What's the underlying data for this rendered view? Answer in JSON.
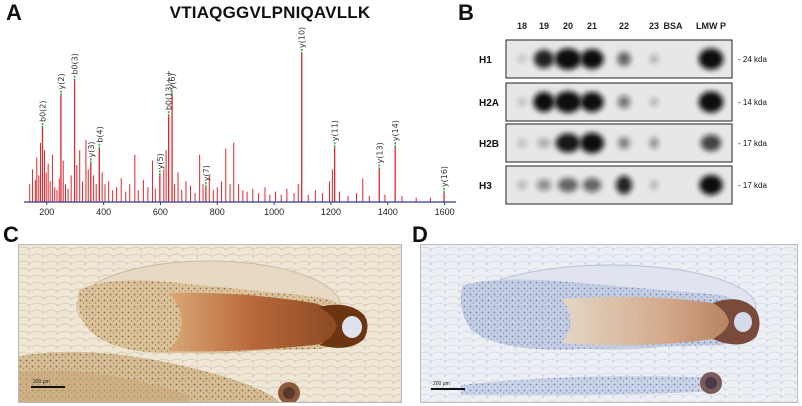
{
  "panels": {
    "a": "A",
    "b": "B",
    "c": "C",
    "d": "D"
  },
  "peptide": "VTIAQGGVLPNIQAVLLK",
  "chart_data": {
    "type": "bar",
    "title": "VTIAQGGVLPNIQAVLLK",
    "xlim": [
      120,
      1640
    ],
    "xticks": [
      200,
      400,
      600,
      800,
      1000,
      1200,
      1400,
      1600
    ],
    "annotated_peaks": [
      {
        "label": "b0(2)",
        "x": 185,
        "y": 50
      },
      {
        "label": "y(2)",
        "x": 250,
        "y": 72
      },
      {
        "label": "b0(3)",
        "x": 298,
        "y": 82
      },
      {
        "label": "y(3)",
        "x": 355,
        "y": 26
      },
      {
        "label": "b(4)",
        "x": 385,
        "y": 36
      },
      {
        "label": "y(5)",
        "x": 598,
        "y": 18
      },
      {
        "label": "b0(13)++",
        "x": 629,
        "y": 58
      },
      {
        "label": "y(6)",
        "x": 641,
        "y": 72
      },
      {
        "label": "y(7)",
        "x": 760,
        "y": 10
      },
      {
        "label": "y(10)",
        "x": 1097,
        "y": 100
      },
      {
        "label": "y(11)",
        "x": 1213,
        "y": 37
      },
      {
        "label": "y(13)",
        "x": 1370,
        "y": 22
      },
      {
        "label": "y(14)",
        "x": 1426,
        "y": 37
      },
      {
        "label": "y(16)",
        "x": 1598,
        "y": 6
      }
    ],
    "other_peaks": [
      {
        "x": 140,
        "y": 12
      },
      {
        "x": 150,
        "y": 22
      },
      {
        "x": 160,
        "y": 15
      },
      {
        "x": 165,
        "y": 30
      },
      {
        "x": 172,
        "y": 18
      },
      {
        "x": 178,
        "y": 40
      },
      {
        "x": 192,
        "y": 35
      },
      {
        "x": 198,
        "y": 20
      },
      {
        "x": 205,
        "y": 26
      },
      {
        "x": 212,
        "y": 14
      },
      {
        "x": 220,
        "y": 32
      },
      {
        "x": 228,
        "y": 10
      },
      {
        "x": 236,
        "y": 8
      },
      {
        "x": 244,
        "y": 16
      },
      {
        "x": 258,
        "y": 28
      },
      {
        "x": 266,
        "y": 12
      },
      {
        "x": 275,
        "y": 9
      },
      {
        "x": 286,
        "y": 18
      },
      {
        "x": 306,
        "y": 25
      },
      {
        "x": 316,
        "y": 35
      },
      {
        "x": 326,
        "y": 14
      },
      {
        "x": 338,
        "y": 42
      },
      {
        "x": 346,
        "y": 22
      },
      {
        "x": 365,
        "y": 18
      },
      {
        "x": 374,
        "y": 12
      },
      {
        "x": 395,
        "y": 20
      },
      {
        "x": 405,
        "y": 12
      },
      {
        "x": 418,
        "y": 14
      },
      {
        "x": 432,
        "y": 8
      },
      {
        "x": 446,
        "y": 10
      },
      {
        "x": 462,
        "y": 16
      },
      {
        "x": 478,
        "y": 7
      },
      {
        "x": 492,
        "y": 12
      },
      {
        "x": 510,
        "y": 32
      },
      {
        "x": 522,
        "y": 8
      },
      {
        "x": 540,
        "y": 15
      },
      {
        "x": 556,
        "y": 10
      },
      {
        "x": 572,
        "y": 28
      },
      {
        "x": 582,
        "y": 9
      },
      {
        "x": 612,
        "y": 22
      },
      {
        "x": 620,
        "y": 35
      },
      {
        "x": 650,
        "y": 12
      },
      {
        "x": 662,
        "y": 20
      },
      {
        "x": 675,
        "y": 8
      },
      {
        "x": 690,
        "y": 14
      },
      {
        "x": 706,
        "y": 11
      },
      {
        "x": 722,
        "y": 6
      },
      {
        "x": 738,
        "y": 32
      },
      {
        "x": 750,
        "y": 12
      },
      {
        "x": 772,
        "y": 18
      },
      {
        "x": 786,
        "y": 8
      },
      {
        "x": 800,
        "y": 10
      },
      {
        "x": 815,
        "y": 14
      },
      {
        "x": 830,
        "y": 36
      },
      {
        "x": 845,
        "y": 12
      },
      {
        "x": 858,
        "y": 40
      },
      {
        "x": 875,
        "y": 12
      },
      {
        "x": 890,
        "y": 8
      },
      {
        "x": 905,
        "y": 7
      },
      {
        "x": 925,
        "y": 9
      },
      {
        "x": 945,
        "y": 6
      },
      {
        "x": 968,
        "y": 10
      },
      {
        "x": 985,
        "y": 5
      },
      {
        "x": 1005,
        "y": 7
      },
      {
        "x": 1025,
        "y": 5
      },
      {
        "x": 1045,
        "y": 9
      },
      {
        "x": 1070,
        "y": 6
      },
      {
        "x": 1085,
        "y": 12
      },
      {
        "x": 1120,
        "y": 5
      },
      {
        "x": 1145,
        "y": 8
      },
      {
        "x": 1170,
        "y": 6
      },
      {
        "x": 1195,
        "y": 14
      },
      {
        "x": 1205,
        "y": 22
      },
      {
        "x": 1230,
        "y": 7
      },
      {
        "x": 1260,
        "y": 4
      },
      {
        "x": 1290,
        "y": 6
      },
      {
        "x": 1312,
        "y": 16
      },
      {
        "x": 1335,
        "y": 4
      },
      {
        "x": 1390,
        "y": 5
      },
      {
        "x": 1450,
        "y": 4
      },
      {
        "x": 1500,
        "y": 3
      },
      {
        "x": 1550,
        "y": 3
      }
    ],
    "colors": {
      "peak": "#e0262d",
      "label_tick": "#3aa33a",
      "axis": "#2a3b8f"
    }
  },
  "blot": {
    "lanes": [
      "18",
      "19",
      "20",
      "21",
      "22",
      "23",
      "BSA",
      "LMW P"
    ],
    "rows": [
      {
        "label": "H1",
        "marker": "- 24 kda",
        "intensity": [
          0.02,
          0.75,
          0.95,
          0.85,
          0.45,
          0.12,
          0.0,
          0.95
        ]
      },
      {
        "label": "H2A",
        "marker": "- 14 kda",
        "intensity": [
          0.05,
          0.85,
          0.98,
          0.85,
          0.35,
          0.1,
          0.0,
          0.95
        ]
      },
      {
        "label": "H2B",
        "marker": "- 17 kda",
        "intensity": [
          0.05,
          0.12,
          0.8,
          0.9,
          0.3,
          0.25,
          0.0,
          0.6
        ]
      },
      {
        "label": "H3",
        "marker": "- 17 kda",
        "intensity": [
          0.08,
          0.25,
          0.45,
          0.45,
          0.75,
          0.1,
          0.0,
          0.85
        ]
      }
    ]
  },
  "micrographs": {
    "c": {
      "scale_label": "200 µm"
    },
    "d": {
      "scale_label": "200 µm"
    }
  }
}
